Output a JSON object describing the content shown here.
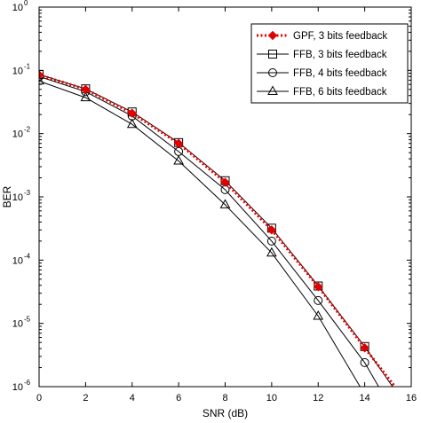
{
  "chart_data": {
    "type": "line",
    "title": "",
    "xlabel": "SNR (dB)",
    "ylabel": "BER",
    "xlim": [
      0,
      16
    ],
    "ylim": [
      1e-06,
      1
    ],
    "yscale": "log",
    "grid": false,
    "legend_position": "top-right",
    "x_ticks": [
      "0",
      "2",
      "4",
      "6",
      "8",
      "10",
      "12",
      "14",
      "16"
    ],
    "y_ticks": [
      {
        "base": "10",
        "exp": "0"
      },
      {
        "base": "10",
        "exp": "-1"
      },
      {
        "base": "10",
        "exp": "-2"
      },
      {
        "base": "10",
        "exp": "-3"
      },
      {
        "base": "10",
        "exp": "-4"
      },
      {
        "base": "10",
        "exp": "-5"
      },
      {
        "base": "10",
        "exp": "-6"
      }
    ],
    "series": [
      {
        "name": "GPF, 3 bits feedback",
        "marker": "diamond",
        "color": "#e00000",
        "dash": "dotted",
        "x": [
          0,
          2,
          4,
          6,
          8,
          10,
          12,
          14,
          15.3
        ],
        "y": [
          0.085,
          0.05,
          0.021,
          0.007,
          0.0017,
          0.0003,
          3.8e-05,
          4.1e-06,
          1e-06
        ]
      },
      {
        "name": "FFB, 3 bits feedback",
        "marker": "square",
        "color": "#000000",
        "dash": "solid",
        "x": [
          0,
          2,
          4,
          6,
          8,
          10,
          12,
          14,
          15.2
        ],
        "y": [
          0.086,
          0.051,
          0.022,
          0.0072,
          0.0018,
          0.00032,
          3.9e-05,
          4.3e-06,
          1e-06
        ]
      },
      {
        "name": "FFB, 4 bits feedback",
        "marker": "circle",
        "color": "#000000",
        "dash": "solid",
        "x": [
          0,
          2,
          4,
          6,
          8,
          10,
          12,
          14,
          14.6
        ],
        "y": [
          0.08,
          0.046,
          0.019,
          0.0052,
          0.0013,
          0.0002,
          2.3e-05,
          2.4e-06,
          1e-06
        ]
      },
      {
        "name": "FFB, 6 bits feedback",
        "marker": "triangle",
        "color": "#000000",
        "dash": "solid",
        "x": [
          0,
          2,
          4,
          6,
          8,
          10,
          12,
          13.8
        ],
        "y": [
          0.068,
          0.037,
          0.014,
          0.0037,
          0.00075,
          0.00013,
          1.3e-05,
          1e-06
        ]
      }
    ]
  }
}
